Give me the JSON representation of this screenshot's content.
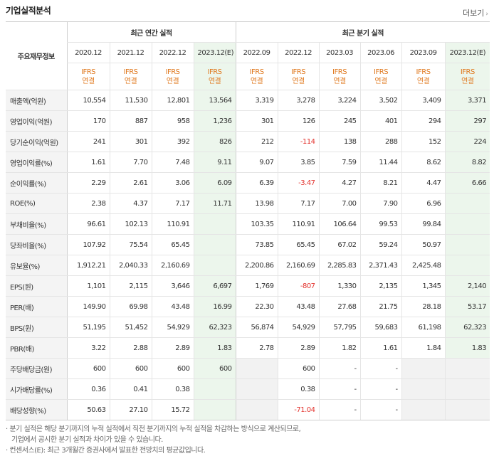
{
  "title": "기업실적분석",
  "more_label": "더보기",
  "header": {
    "row_label": "주요재무정보",
    "annual_label": "최근 연간 실적",
    "quarter_label": "최근 분기 실적",
    "annual_periods": [
      "2020.12",
      "2021.12",
      "2022.12",
      "2023.12(E)"
    ],
    "quarter_periods": [
      "2022.09",
      "2022.12",
      "2023.03",
      "2023.06",
      "2023.09",
      "2023.12(E)"
    ],
    "basis_top": "IFRS",
    "basis_bottom": "연결"
  },
  "rows": [
    {
      "label": "매출액(억원)",
      "values": [
        "10,554",
        "11,530",
        "12,801",
        "13,564",
        "3,319",
        "3,278",
        "3,224",
        "3,502",
        "3,409",
        "3,371"
      ]
    },
    {
      "label": "영업이익(억원)",
      "values": [
        "170",
        "887",
        "958",
        "1,236",
        "301",
        "126",
        "245",
        "401",
        "294",
        "297"
      ]
    },
    {
      "label": "당기순이익(억원)",
      "values": [
        "241",
        "301",
        "392",
        "826",
        "212",
        "-114",
        "138",
        "288",
        "152",
        "224"
      ]
    },
    {
      "label": "영업이익률(%)",
      "values": [
        "1.61",
        "7.70",
        "7.48",
        "9.11",
        "9.07",
        "3.85",
        "7.59",
        "11.44",
        "8.62",
        "8.82"
      ]
    },
    {
      "label": "순이익률(%)",
      "values": [
        "2.29",
        "2.61",
        "3.06",
        "6.09",
        "6.39",
        "-3.47",
        "4.27",
        "8.21",
        "4.47",
        "6.66"
      ]
    },
    {
      "label": "ROE(%)",
      "values": [
        "2.38",
        "4.37",
        "7.17",
        "11.71",
        "13.98",
        "7.17",
        "7.00",
        "7.90",
        "6.96",
        ""
      ]
    },
    {
      "label": "부채비율(%)",
      "values": [
        "96.61",
        "102.13",
        "110.91",
        "",
        "103.35",
        "110.91",
        "106.64",
        "99.53",
        "99.84",
        ""
      ]
    },
    {
      "label": "당좌비율(%)",
      "values": [
        "107.92",
        "75.54",
        "65.45",
        "",
        "73.85",
        "65.45",
        "67.02",
        "59.24",
        "50.97",
        ""
      ]
    },
    {
      "label": "유보율(%)",
      "values": [
        "1,912.21",
        "2,040.33",
        "2,160.69",
        "",
        "2,200.86",
        "2,160.69",
        "2,285.83",
        "2,371.43",
        "2,425.48",
        ""
      ]
    },
    {
      "label": "EPS(원)",
      "values": [
        "1,101",
        "2,115",
        "3,646",
        "6,697",
        "1,769",
        "-807",
        "1,330",
        "2,135",
        "1,345",
        "2,140"
      ]
    },
    {
      "label": "PER(배)",
      "values": [
        "149.90",
        "69.98",
        "43.48",
        "16.99",
        "22.30",
        "43.48",
        "27.68",
        "21.75",
        "28.18",
        "53.17"
      ]
    },
    {
      "label": "BPS(원)",
      "values": [
        "51,195",
        "51,452",
        "54,929",
        "62,323",
        "56,874",
        "54,929",
        "57,795",
        "59,683",
        "61,198",
        "62,323"
      ]
    },
    {
      "label": "PBR(배)",
      "values": [
        "3.22",
        "2.88",
        "2.89",
        "1.83",
        "2.78",
        "2.89",
        "1.82",
        "1.61",
        "1.84",
        "1.83"
      ]
    },
    {
      "label": "주당배당금(원)",
      "values": [
        "600",
        "600",
        "600",
        "600",
        "",
        "600",
        "-",
        "-",
        "",
        ""
      ]
    },
    {
      "label": "시가배당률(%)",
      "values": [
        "0.36",
        "0.41",
        "0.38",
        "",
        "",
        "0.38",
        "-",
        "-",
        "",
        ""
      ]
    },
    {
      "label": "배당성향(%)",
      "values": [
        "50.63",
        "27.10",
        "15.72",
        "",
        "",
        "-71.04",
        "-",
        "-",
        "",
        ""
      ]
    }
  ],
  "notes": [
    "분기 실적은 해당 분기까지의 누적 실적에서 직전 분기까지의 누적 실적을 차감하는 방식으로 계산되므로,",
    "기업에서 공시한 분기 실적과 차이가 있을 수 있습니다.",
    "컨센서스(E): 최근 3개월간 증권사에서 발표한 전망치의 평균값입니다."
  ],
  "colors": {
    "negative": "#e3342f",
    "basis": "#e0791f",
    "estimate_bg": "#ecf6ec"
  }
}
